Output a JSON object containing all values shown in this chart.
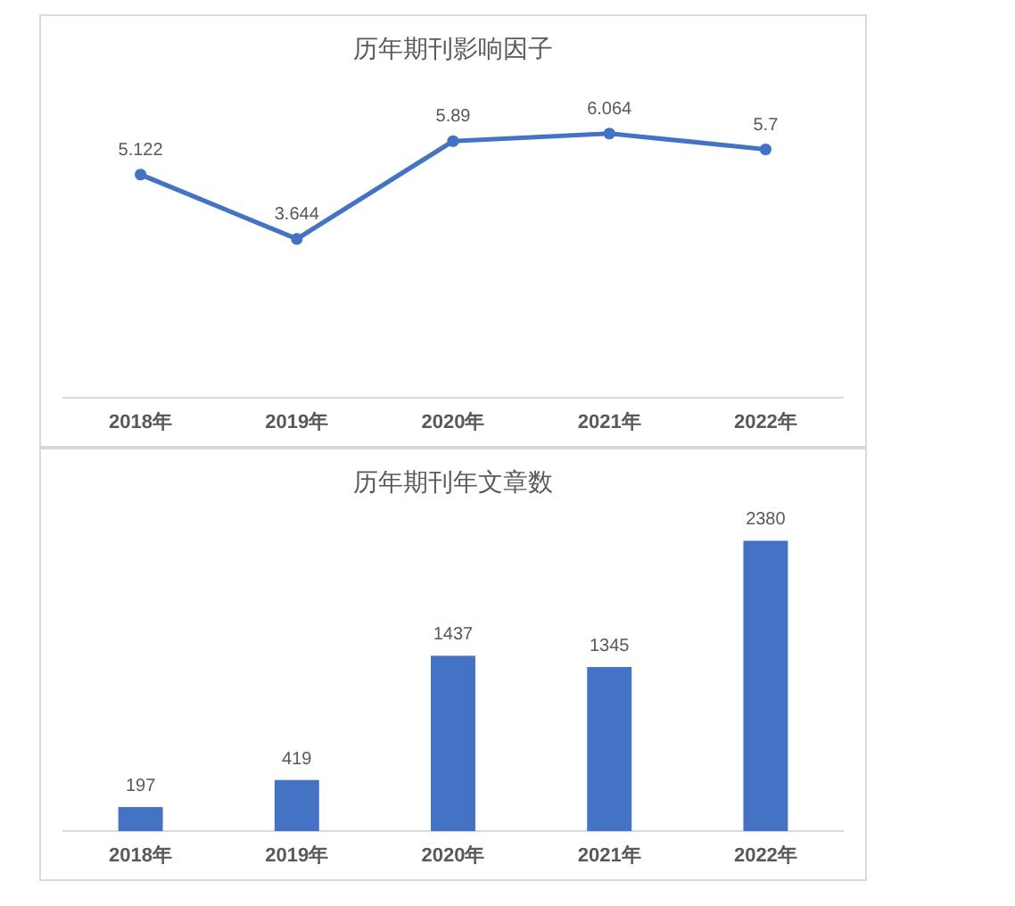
{
  "chart_data": [
    {
      "type": "line",
      "title": "历年期刊影响因子",
      "categories": [
        "2018年",
        "2019年",
        "2020年",
        "2021年",
        "2022年"
      ],
      "values": [
        5.122,
        3.644,
        5.89,
        6.064,
        5.7
      ],
      "color": "#4472c4",
      "marker": "circle",
      "data_labels": true,
      "tick_labels": "x"
    },
    {
      "type": "bar",
      "title": "历年期刊年文章数",
      "categories": [
        "2018年",
        "2019年",
        "2020年",
        "2021年",
        "2022年"
      ],
      "values": [
        197,
        419,
        1437,
        1345,
        2380
      ],
      "color": "#4472c4",
      "data_labels": true,
      "tick_labels": "x"
    }
  ]
}
